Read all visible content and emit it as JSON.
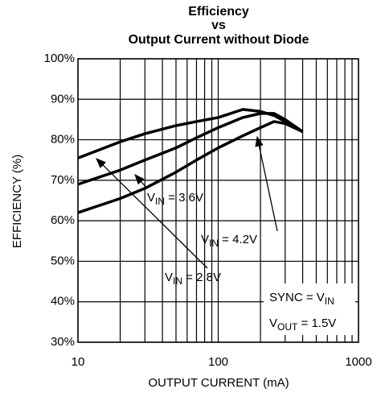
{
  "chart_data": {
    "type": "line",
    "title": [
      "Efficiency",
      "vs",
      "Output Current without Diode"
    ],
    "x_label": "OUTPUT CURRENT (mA)",
    "y_label": "EFFICIENCY (%)",
    "x_log": true,
    "xlim": [
      10,
      1000
    ],
    "xticks": [
      10,
      100,
      1000
    ],
    "xminor": [
      20,
      30,
      40,
      50,
      60,
      70,
      80,
      90,
      200,
      300,
      400,
      500,
      600,
      700,
      800,
      900
    ],
    "ylim": [
      30,
      100
    ],
    "yticks": [
      {
        "value": 30,
        "label": "30%"
      },
      {
        "value": 40,
        "label": "40%"
      },
      {
        "value": 50,
        "label": "50%"
      },
      {
        "value": 60,
        "label": "60%"
      },
      {
        "value": 70,
        "label": "70%"
      },
      {
        "value": 80,
        "label": "80%"
      },
      {
        "value": 90,
        "label": "90%"
      },
      {
        "value": 100,
        "label": "100%"
      }
    ],
    "grid": true,
    "color": "#000000",
    "x": [
      10,
      20,
      30,
      50,
      70,
      100,
      150,
      200,
      250,
      300,
      400
    ],
    "series": [
      {
        "values": [
          75.5,
          79.5,
          81.5,
          83.5,
          84.5,
          85.5,
          87.5,
          87,
          86,
          84.5,
          82
        ]
      },
      {
        "values": [
          69,
          72.5,
          75,
          78,
          80.5,
          83,
          85.5,
          86.5,
          86.5,
          85,
          82
        ]
      },
      {
        "values": [
          62,
          65.5,
          68,
          72,
          75,
          78,
          81,
          83,
          84.5,
          84,
          82
        ]
      }
    ],
    "annotations": [
      [
        "V",
        "IN",
        " = 3.6V"
      ],
      [
        "V",
        "IN",
        " = 4.2V"
      ],
      [
        "V",
        "IN",
        " = 2.8V"
      ],
      [
        "SYNC = V",
        "IN"
      ],
      [
        "V",
        "OUT",
        " = 1.5V"
      ]
    ]
  }
}
